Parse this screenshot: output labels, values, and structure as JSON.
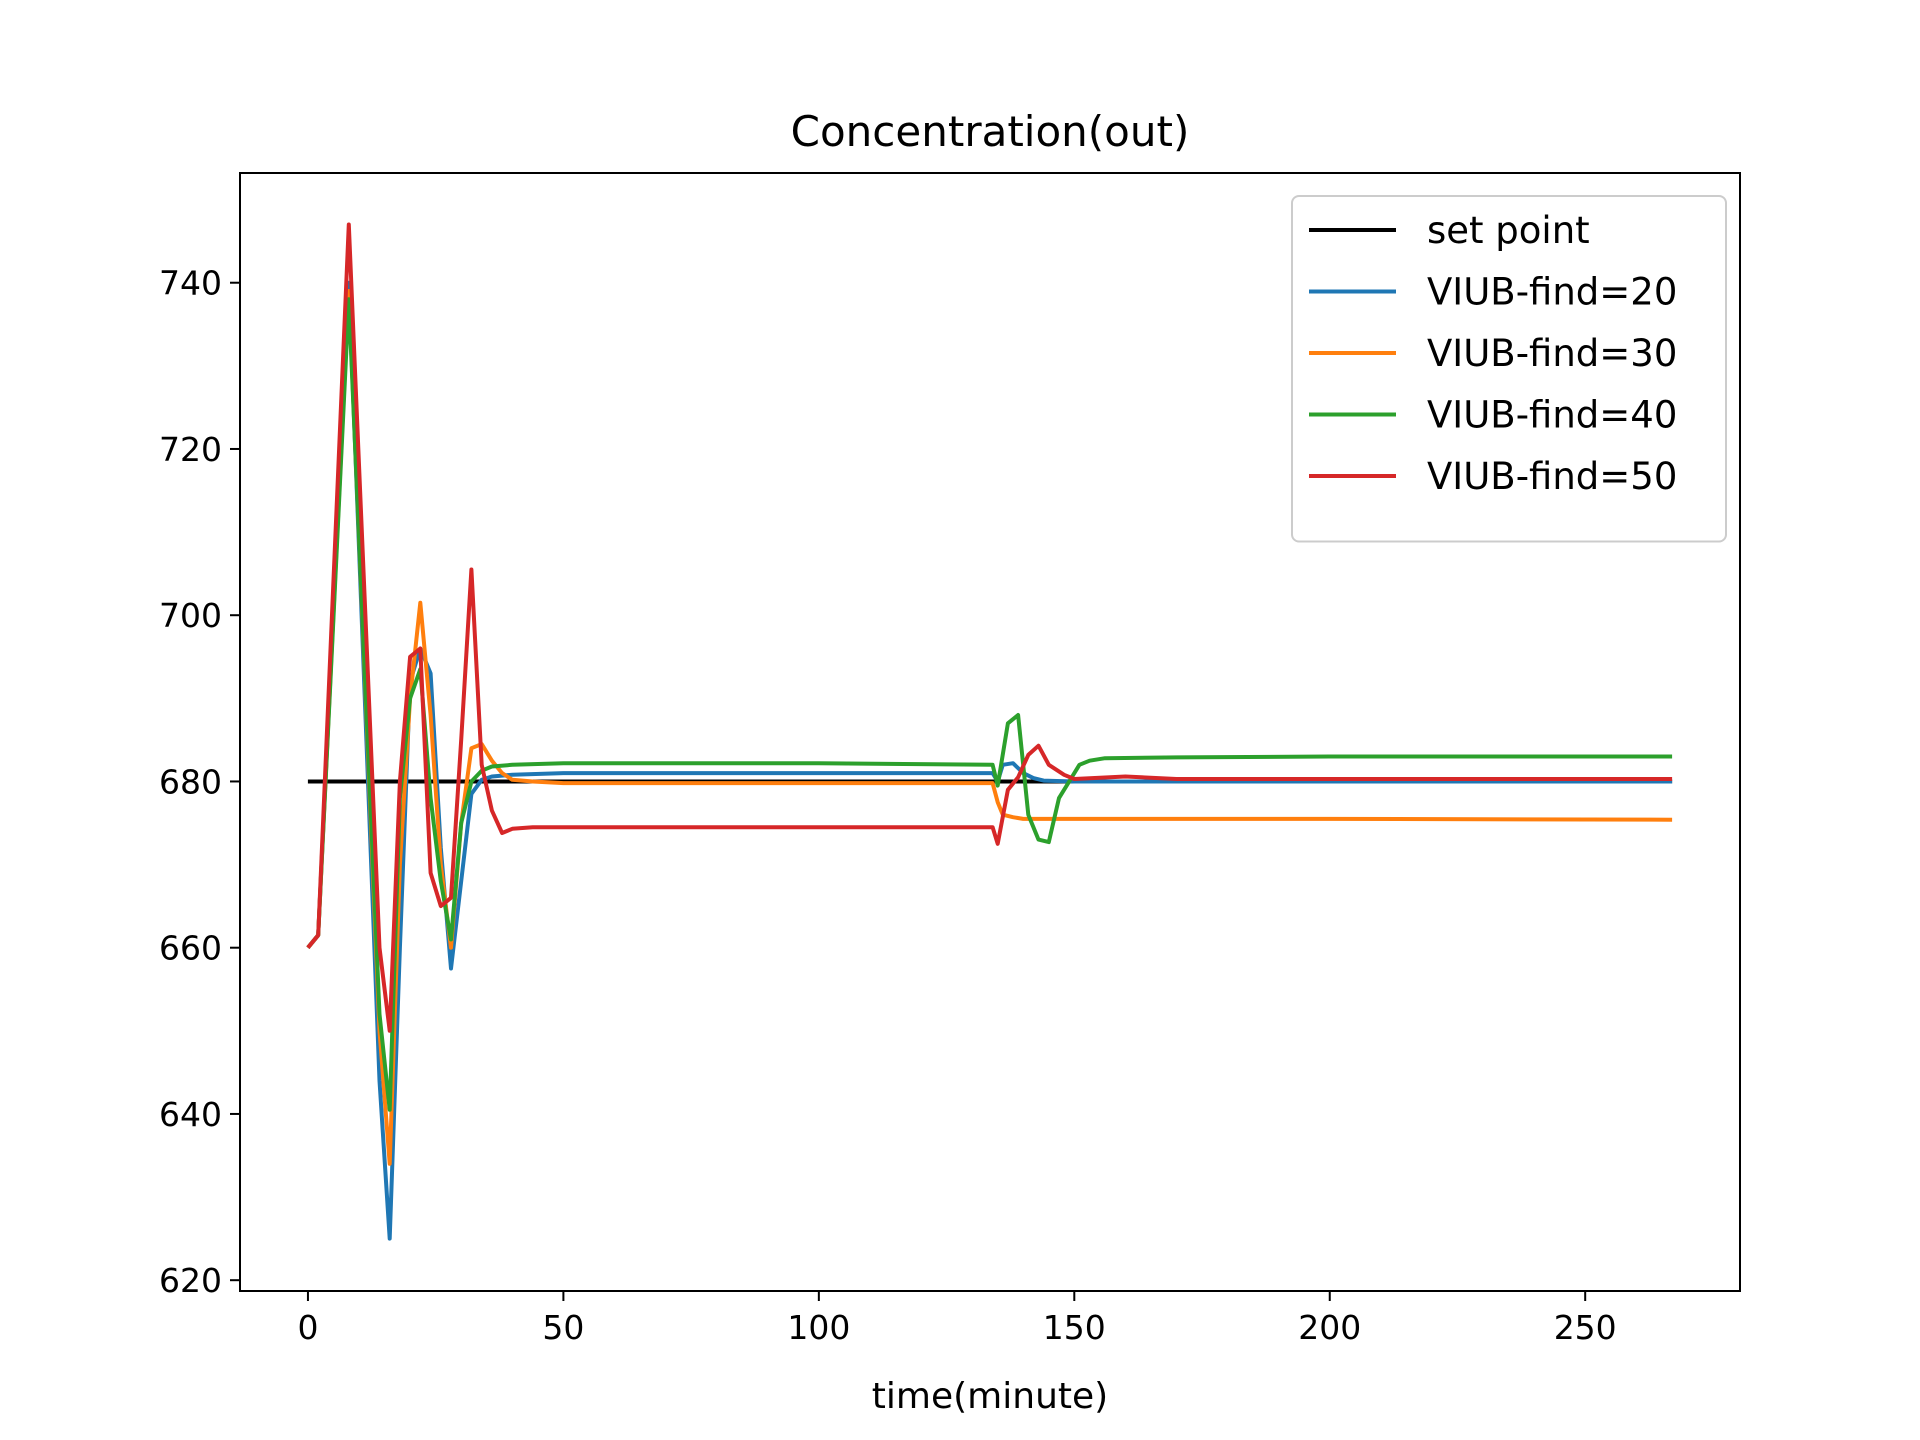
{
  "chart_data": {
    "type": "line",
    "title": "Concentration(out)",
    "xlabel": "time(minute)",
    "ylabel": "",
    "xlim": [
      -13.3,
      280.3
    ],
    "ylim": [
      618.7,
      753.2
    ],
    "xticks": [
      0,
      50,
      100,
      150,
      200,
      250
    ],
    "yticks": [
      620,
      640,
      660,
      680,
      700,
      720,
      740
    ],
    "grid": false,
    "legend_position": "top-right",
    "series": [
      {
        "name": "set point",
        "color": "#000000",
        "points": [
          [
            0,
            680
          ],
          [
            267,
            680
          ]
        ]
      },
      {
        "name": "VIUB-find=20",
        "color": "#1f77b4",
        "points": [
          [
            0,
            660
          ],
          [
            2,
            661.5
          ],
          [
            8,
            740
          ],
          [
            14,
            644
          ],
          [
            16,
            625
          ],
          [
            18,
            660
          ],
          [
            20,
            692
          ],
          [
            22,
            696
          ],
          [
            24,
            693
          ],
          [
            26,
            672
          ],
          [
            28,
            657.5
          ],
          [
            30,
            668
          ],
          [
            32,
            678.5
          ],
          [
            34,
            680.2
          ],
          [
            36,
            680.6
          ],
          [
            38,
            680.7
          ],
          [
            40,
            680.8
          ],
          [
            50,
            681
          ],
          [
            100,
            681
          ],
          [
            134,
            681
          ],
          [
            135,
            680
          ],
          [
            136,
            682
          ],
          [
            138,
            682.2
          ],
          [
            140,
            681
          ],
          [
            142,
            680.4
          ],
          [
            144,
            680.1
          ],
          [
            150,
            680
          ],
          [
            267,
            680
          ]
        ]
      },
      {
        "name": "VIUB-find=30",
        "color": "#ff7f0e",
        "points": [
          [
            0,
            660
          ],
          [
            2,
            661.5
          ],
          [
            8,
            739
          ],
          [
            14,
            650
          ],
          [
            16,
            634
          ],
          [
            18,
            670
          ],
          [
            20,
            690
          ],
          [
            22,
            701.5
          ],
          [
            24,
            688
          ],
          [
            26,
            670
          ],
          [
            28,
            660
          ],
          [
            30,
            675
          ],
          [
            32,
            684
          ],
          [
            34,
            684.5
          ],
          [
            36,
            682.5
          ],
          [
            38,
            681
          ],
          [
            40,
            680.2
          ],
          [
            44,
            680
          ],
          [
            50,
            679.8
          ],
          [
            100,
            679.8
          ],
          [
            134,
            679.8
          ],
          [
            135,
            677.5
          ],
          [
            136,
            676
          ],
          [
            138,
            675.7
          ],
          [
            140,
            675.5
          ],
          [
            150,
            675.5
          ],
          [
            200,
            675.5
          ],
          [
            267,
            675.4
          ]
        ]
      },
      {
        "name": "VIUB-find=40",
        "color": "#2ca02c",
        "points": [
          [
            0,
            660
          ],
          [
            2,
            661.5
          ],
          [
            8,
            738
          ],
          [
            14,
            652
          ],
          [
            16,
            640.5
          ],
          [
            18,
            678
          ],
          [
            20,
            690
          ],
          [
            22,
            693.5
          ],
          [
            24,
            678
          ],
          [
            26,
            668
          ],
          [
            28,
            661
          ],
          [
            30,
            675
          ],
          [
            32,
            680
          ],
          [
            34,
            681.3
          ],
          [
            36,
            681.8
          ],
          [
            40,
            682
          ],
          [
            50,
            682.2
          ],
          [
            100,
            682.2
          ],
          [
            134,
            682
          ],
          [
            135,
            679.5
          ],
          [
            137,
            687
          ],
          [
            139,
            688
          ],
          [
            141,
            676
          ],
          [
            143,
            673
          ],
          [
            145,
            672.7
          ],
          [
            147,
            678
          ],
          [
            149,
            680
          ],
          [
            151,
            682
          ],
          [
            153,
            682.5
          ],
          [
            156,
            682.8
          ],
          [
            170,
            682.9
          ],
          [
            200,
            683
          ],
          [
            267,
            683
          ]
        ]
      },
      {
        "name": "VIUB-find=50",
        "color": "#d62728",
        "points": [
          [
            0,
            660
          ],
          [
            2,
            661.5
          ],
          [
            8,
            747
          ],
          [
            14,
            660
          ],
          [
            16,
            650
          ],
          [
            18,
            680
          ],
          [
            20,
            695
          ],
          [
            22,
            696
          ],
          [
            24,
            669
          ],
          [
            26,
            665
          ],
          [
            28,
            666
          ],
          [
            30,
            685
          ],
          [
            32,
            705.5
          ],
          [
            34,
            682
          ],
          [
            36,
            676.5
          ],
          [
            38,
            673.8
          ],
          [
            40,
            674.3
          ],
          [
            44,
            674.5
          ],
          [
            100,
            674.5
          ],
          [
            134,
            674.5
          ],
          [
            135,
            672.5
          ],
          [
            137,
            679
          ],
          [
            139,
            680.5
          ],
          [
            141,
            683.2
          ],
          [
            143,
            684.3
          ],
          [
            145,
            682
          ],
          [
            148,
            680.8
          ],
          [
            150,
            680.3
          ],
          [
            160,
            680.6
          ],
          [
            170,
            680.3
          ],
          [
            200,
            680.3
          ],
          [
            267,
            680.3
          ]
        ]
      }
    ]
  }
}
